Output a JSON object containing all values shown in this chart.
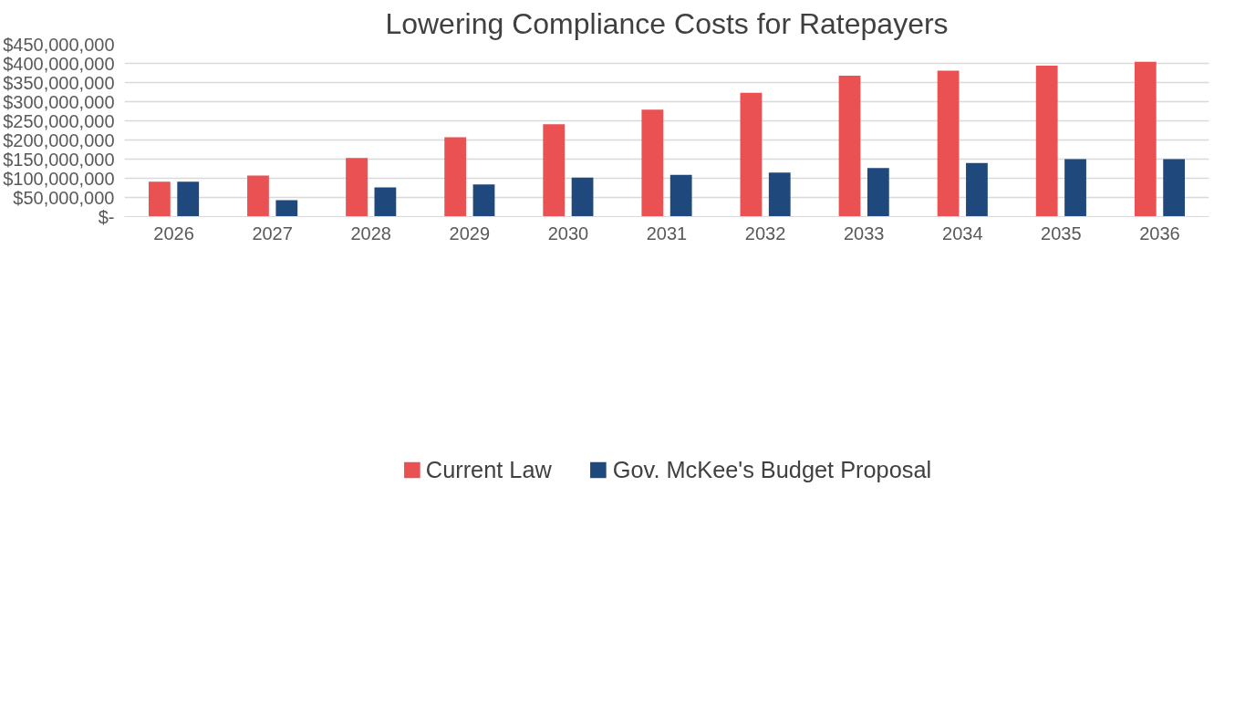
{
  "chart_data": {
    "type": "bar",
    "title": "Lowering Compliance Costs for Ratepayers",
    "categories": [
      "2026",
      "2027",
      "2028",
      "2029",
      "2030",
      "2031",
      "2032",
      "2033",
      "2034",
      "2035",
      "2036"
    ],
    "series": [
      {
        "name": "Current Law",
        "color": "#e95153",
        "values": [
          91000000,
          107000000,
          153000000,
          207000000,
          241000000,
          279000000,
          323000000,
          368000000,
          381000000,
          394000000,
          404000000
        ]
      },
      {
        "name": "Gov. McKee's Budget Proposal",
        "color": "#1f497d",
        "values": [
          91000000,
          43000000,
          76000000,
          84000000,
          102000000,
          109000000,
          115000000,
          127000000,
          140000000,
          150000000,
          150000000
        ]
      }
    ],
    "ylim": [
      0,
      450000000
    ],
    "yticks": [
      {
        "value": 0,
        "label": "$-"
      },
      {
        "value": 50000000,
        "label": "$50,000,000"
      },
      {
        "value": 100000000,
        "label": "$100,000,000"
      },
      {
        "value": 150000000,
        "label": "$150,000,000"
      },
      {
        "value": 200000000,
        "label": "$200,000,000"
      },
      {
        "value": 250000000,
        "label": "$250,000,000"
      },
      {
        "value": 300000000,
        "label": "$300,000,000"
      },
      {
        "value": 350000000,
        "label": "$350,000,000"
      },
      {
        "value": 400000000,
        "label": "$400,000,000"
      },
      {
        "value": 450000000,
        "label": "$450,000,000"
      }
    ],
    "grid": "y",
    "legend": "bottom"
  }
}
